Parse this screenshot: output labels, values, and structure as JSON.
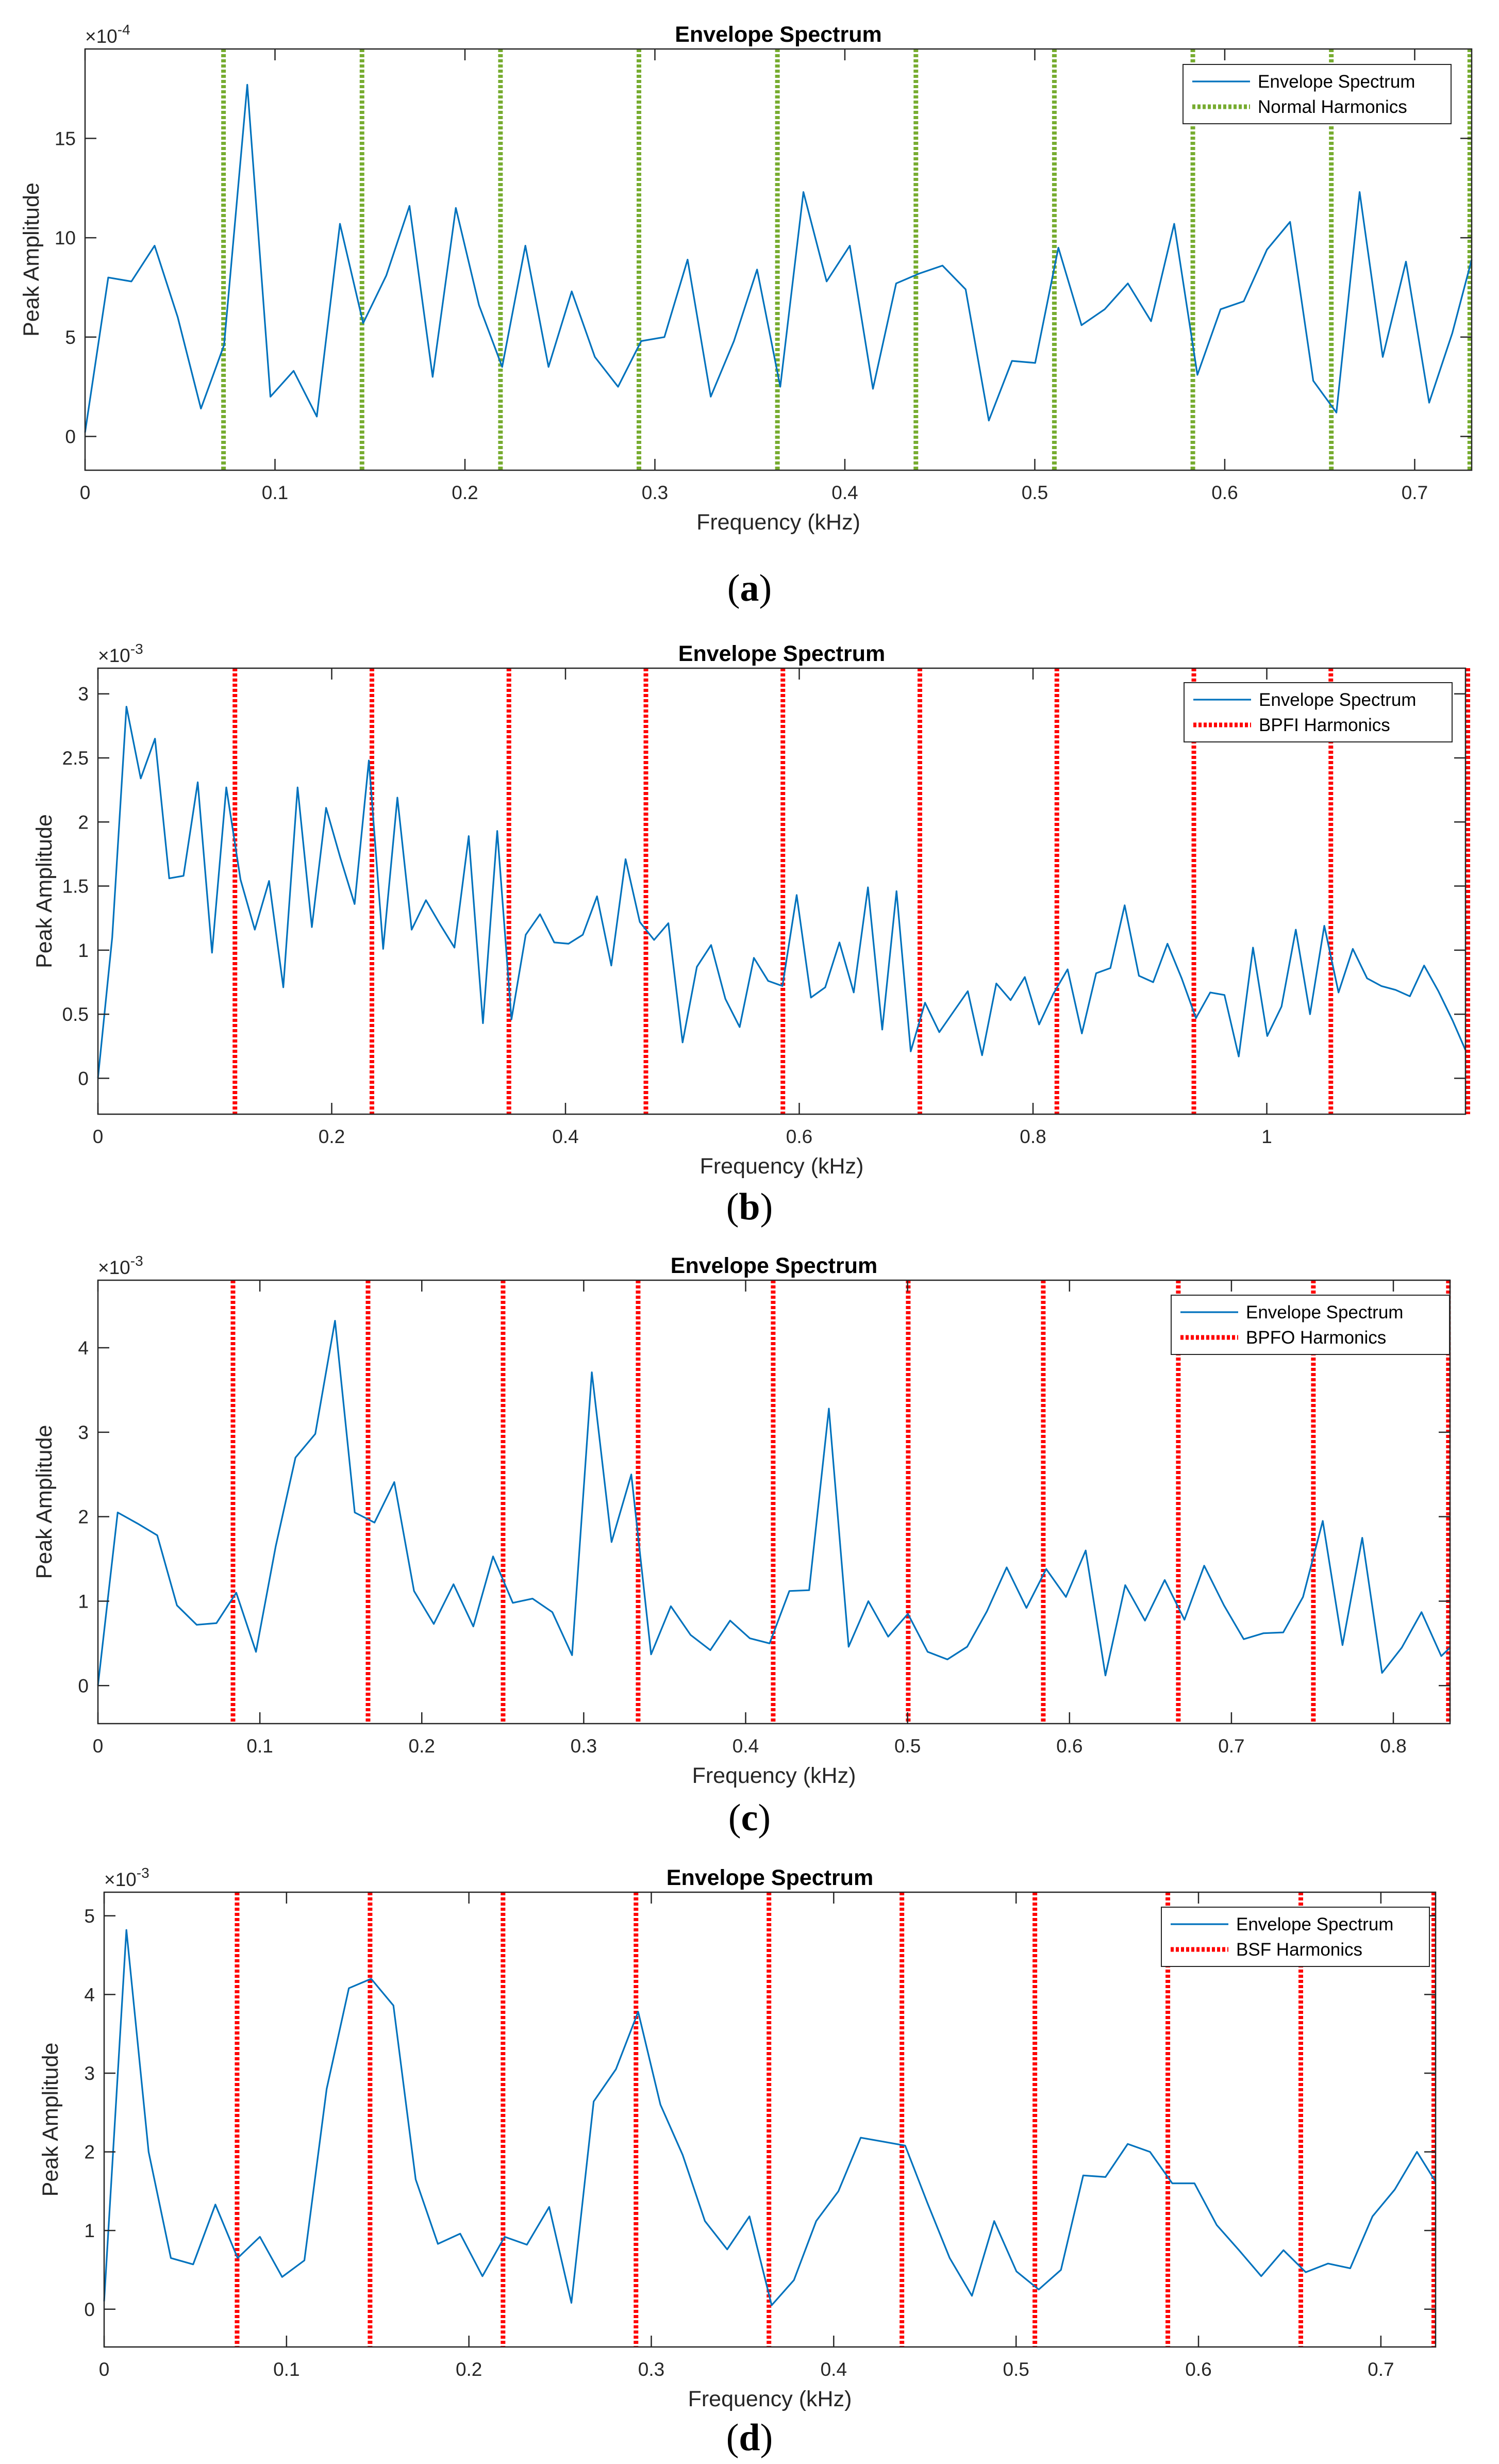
{
  "chart_data": [
    {
      "type": "line",
      "title": "Envelope Spectrum",
      "xlabel": "Frequency (kHz)",
      "ylabel": "Peak Amplitude",
      "exponent": "×10^-4",
      "exp_base": "×10",
      "exp_power": "-4",
      "xlim": [
        0,
        0.73
      ],
      "ylim": [
        -1.7,
        19.5
      ],
      "xticks": [
        0,
        0.1,
        0.2,
        0.3,
        0.4,
        0.5,
        0.6,
        0.7
      ],
      "xtick_labels": [
        "0",
        "0.1",
        "0.2",
        "0.3",
        "0.4",
        "0.5",
        "0.6",
        "0.7"
      ],
      "yticks": [
        0,
        5,
        10,
        15
      ],
      "ytick_labels": [
        "0",
        "5",
        "10",
        "15"
      ],
      "harmonics_color": "#77AC30",
      "harmonics": [
        0.0729,
        0.1458,
        0.2187,
        0.2916,
        0.3645,
        0.4374,
        0.5103,
        0.5832,
        0.6561,
        0.729
      ],
      "legend": [
        "Envelope Spectrum",
        "Normal Harmonics"
      ],
      "panel_label": "a",
      "series": [
        {
          "name": "Envelope Spectrum",
          "x": [
            0,
            0.0122,
            0.0244,
            0.0366,
            0.0488,
            0.061,
            0.0732,
            0.0854,
            0.0976,
            0.1098,
            0.122,
            0.1342,
            0.1464,
            0.1586,
            0.1708,
            0.183,
            0.1952,
            0.2074,
            0.2196,
            0.2318,
            0.244,
            0.2562,
            0.2684,
            0.2806,
            0.2928,
            0.305,
            0.3172,
            0.3294,
            0.3416,
            0.3538,
            0.366,
            0.3782,
            0.3904,
            0.4026,
            0.4148,
            0.427,
            0.4392,
            0.4514,
            0.4636,
            0.4758,
            0.488,
            0.5002,
            0.5124,
            0.5246,
            0.5368,
            0.549,
            0.5612,
            0.5734,
            0.5856,
            0.5978,
            0.61,
            0.6222,
            0.6344,
            0.6466,
            0.6588,
            0.671,
            0.6832,
            0.6954,
            0.7076,
            0.7198,
            0.73
          ],
          "values": [
            0.2,
            8.0,
            7.8,
            9.6,
            6.0,
            1.4,
            4.6,
            17.7,
            2.0,
            3.3,
            1.0,
            10.7,
            5.7,
            8.1,
            11.6,
            3.0,
            11.5,
            6.6,
            3.5,
            9.6,
            3.5,
            7.3,
            4.0,
            2.5,
            4.8,
            5.0,
            8.9,
            2.0,
            4.8,
            8.4,
            2.5,
            12.3,
            7.8,
            9.6,
            2.4,
            7.7,
            8.2,
            8.6,
            7.4,
            0.8,
            3.8,
            3.7,
            9.5,
            5.6,
            6.4,
            7.7,
            5.8,
            10.7,
            3.1,
            6.4,
            6.8,
            9.4,
            10.8,
            2.8,
            1.2,
            12.3,
            4.0,
            8.8,
            1.7,
            5.2,
            8.9
          ]
        }
      ]
    },
    {
      "type": "line",
      "title": "Envelope Spectrum",
      "xlabel": "Frequency (kHz)",
      "ylabel": "Peak Amplitude",
      "exponent": "×10^-3",
      "exp_base": "×10",
      "exp_power": "-3",
      "xlim": [
        0,
        1.17
      ],
      "ylim": [
        -0.28,
        3.2
      ],
      "xticks": [
        0,
        0.2,
        0.4,
        0.6,
        0.8,
        1.0
      ],
      "xtick_labels": [
        "0",
        "0.2",
        "0.4",
        "0.6",
        "0.8",
        "1"
      ],
      "yticks": [
        0,
        0.5,
        1,
        1.5,
        2,
        2.5,
        3
      ],
      "ytick_labels": [
        "0",
        "0.5",
        "1",
        "1.5",
        "2",
        "2.5",
        "3"
      ],
      "harmonics_color": "#FF0000",
      "harmonics": [
        0.1172,
        0.2344,
        0.3516,
        0.4688,
        0.586,
        0.7032,
        0.8204,
        0.9376,
        1.0548,
        1.172
      ],
      "legend": [
        "Envelope Spectrum",
        "BPFI Harmonics"
      ],
      "panel_label": "b",
      "series": [
        {
          "name": "Envelope Spectrum",
          "x": [
            0,
            0.0122,
            0.0244,
            0.0366,
            0.0488,
            0.061,
            0.0732,
            0.0854,
            0.0976,
            0.1098,
            0.122,
            0.1342,
            0.1464,
            0.1586,
            0.1708,
            0.183,
            0.1952,
            0.2074,
            0.2196,
            0.2318,
            0.244,
            0.2562,
            0.2684,
            0.2806,
            0.2928,
            0.305,
            0.3172,
            0.3294,
            0.3416,
            0.3538,
            0.366,
            0.3782,
            0.3904,
            0.4026,
            0.4148,
            0.427,
            0.4392,
            0.4514,
            0.4636,
            0.4758,
            0.488,
            0.5002,
            0.5124,
            0.5246,
            0.5368,
            0.549,
            0.5612,
            0.5734,
            0.5856,
            0.5978,
            0.61,
            0.6222,
            0.6344,
            0.6466,
            0.6588,
            0.671,
            0.6832,
            0.6954,
            0.7076,
            0.7198,
            0.732,
            0.7442,
            0.7564,
            0.7686,
            0.7808,
            0.793,
            0.8052,
            0.8174,
            0.8296,
            0.8418,
            0.854,
            0.8662,
            0.8784,
            0.8906,
            0.9028,
            0.915,
            0.9272,
            0.9394,
            0.9516,
            0.9638,
            0.976,
            0.9882,
            1.0004,
            1.0126,
            1.0248,
            1.037,
            1.0492,
            1.0614,
            1.0736,
            1.0858,
            1.098,
            1.1102,
            1.1224,
            1.1346,
            1.1468,
            1.159,
            1.17
          ],
          "values": [
            0,
            1.1,
            2.9,
            2.34,
            2.65,
            1.56,
            1.58,
            2.31,
            0.98,
            2.27,
            1.55,
            1.16,
            1.54,
            0.71,
            2.27,
            1.18,
            2.11,
            1.72,
            1.36,
            2.48,
            1.01,
            2.19,
            1.16,
            1.39,
            1.2,
            1.02,
            1.89,
            0.43,
            1.93,
            0.46,
            1.12,
            1.28,
            1.06,
            1.05,
            1.12,
            1.42,
            0.88,
            1.71,
            1.22,
            1.08,
            1.21,
            0.28,
            0.87,
            1.04,
            0.62,
            0.4,
            0.94,
            0.76,
            0.72,
            1.43,
            0.63,
            0.71,
            1.06,
            0.67,
            1.49,
            0.38,
            1.46,
            0.21,
            0.59,
            0.36,
            0.52,
            0.68,
            0.18,
            0.74,
            0.61,
            0.79,
            0.42,
            0.66,
            0.85,
            0.35,
            0.82,
            0.86,
            1.35,
            0.8,
            0.75,
            1.05,
            0.78,
            0.47,
            0.67,
            0.65,
            0.17,
            1.02,
            0.33,
            0.56,
            1.16,
            0.5,
            1.19,
            0.67,
            1.01,
            0.78,
            0.72,
            0.69,
            0.64,
            0.88,
            0.68,
            0.45,
            0.22
          ]
        }
      ]
    },
    {
      "type": "line",
      "title": "Envelope Spectrum",
      "xlabel": "Frequency (kHz)",
      "ylabel": "Peak Amplitude",
      "exponent": "×10^-3",
      "exp_base": "×10",
      "exp_power": "-3",
      "xlim": [
        0,
        0.835
      ],
      "ylim": [
        -0.45,
        4.8
      ],
      "xticks": [
        0,
        0.1,
        0.2,
        0.3,
        0.4,
        0.5,
        0.6,
        0.7,
        0.8
      ],
      "xtick_labels": [
        "0",
        "0.1",
        "0.2",
        "0.3",
        "0.4",
        "0.5",
        "0.6",
        "0.7",
        "0.8"
      ],
      "yticks": [
        0,
        1,
        2,
        3,
        4
      ],
      "ytick_labels": [
        "0",
        "1",
        "2",
        "3",
        "4"
      ],
      "harmonics_color": "#FF0000",
      "harmonics": [
        0.0834,
        0.1668,
        0.2502,
        0.3336,
        0.417,
        0.5004,
        0.5838,
        0.6672,
        0.7506,
        0.834
      ],
      "legend": [
        "Envelope Spectrum",
        "BPFO Harmonics"
      ],
      "panel_label": "c",
      "series": [
        {
          "name": "Envelope Spectrum",
          "x": [
            0,
            0.0122,
            0.0244,
            0.0366,
            0.0488,
            0.061,
            0.0732,
            0.0854,
            0.0976,
            0.1098,
            0.122,
            0.1342,
            0.1464,
            0.1586,
            0.1708,
            0.183,
            0.1952,
            0.2074,
            0.2196,
            0.2318,
            0.244,
            0.2562,
            0.2684,
            0.2806,
            0.2928,
            0.305,
            0.3172,
            0.3294,
            0.3416,
            0.3538,
            0.366,
            0.3782,
            0.3904,
            0.4026,
            0.4148,
            0.427,
            0.4392,
            0.4514,
            0.4636,
            0.4758,
            0.488,
            0.5002,
            0.5124,
            0.5246,
            0.5368,
            0.549,
            0.5612,
            0.5734,
            0.5856,
            0.5978,
            0.61,
            0.6222,
            0.6344,
            0.6466,
            0.6588,
            0.671,
            0.6832,
            0.6954,
            0.7076,
            0.7198,
            0.732,
            0.7442,
            0.7564,
            0.7686,
            0.7808,
            0.793,
            0.8052,
            0.8174,
            0.8296,
            0.835
          ],
          "values": [
            0,
            2.05,
            1.92,
            1.78,
            0.95,
            0.72,
            0.74,
            1.1,
            0.4,
            1.65,
            2.7,
            2.98,
            4.32,
            2.05,
            1.93,
            2.41,
            1.12,
            0.73,
            1.2,
            0.7,
            1.53,
            0.98,
            1.03,
            0.87,
            0.36,
            3.71,
            1.7,
            2.5,
            0.37,
            0.94,
            0.6,
            0.42,
            0.77,
            0.56,
            0.5,
            1.12,
            1.13,
            3.28,
            0.46,
            1.0,
            0.58,
            0.85,
            0.4,
            0.31,
            0.46,
            0.88,
            1.4,
            0.92,
            1.38,
            1.05,
            1.6,
            0.12,
            1.19,
            0.77,
            1.25,
            0.78,
            1.42,
            0.95,
            0.55,
            0.62,
            0.63,
            1.05,
            1.95,
            0.48,
            1.75,
            0.15,
            0.45,
            0.87,
            0.35,
            0.45
          ]
        }
      ]
    },
    {
      "type": "line",
      "title": "Envelope Spectrum",
      "xlabel": "Frequency (kHz)",
      "ylabel": "Peak Amplitude",
      "exponent": "×10^-3",
      "exp_base": "×10",
      "exp_power": "-3",
      "xlim": [
        0,
        0.73
      ],
      "ylim": [
        -0.48,
        5.3
      ],
      "xticks": [
        0,
        0.1,
        0.2,
        0.3,
        0.4,
        0.5,
        0.6,
        0.7
      ],
      "xtick_labels": [
        "0",
        "0.1",
        "0.2",
        "0.3",
        "0.4",
        "0.5",
        "0.6",
        "0.7"
      ],
      "yticks": [
        0,
        1,
        2,
        3,
        4,
        5
      ],
      "ytick_labels": [
        "0",
        "1",
        "2",
        "3",
        "4",
        "5"
      ],
      "harmonics_color": "#FF0000",
      "harmonics": [
        0.0729,
        0.1458,
        0.2187,
        0.2916,
        0.3645,
        0.4374,
        0.5103,
        0.5832,
        0.6561,
        0.729
      ],
      "legend": [
        "Envelope Spectrum",
        "BSF Harmonics"
      ],
      "panel_label": "d",
      "series": [
        {
          "name": "Envelope Spectrum",
          "x": [
            0,
            0.0122,
            0.0244,
            0.0366,
            0.0488,
            0.061,
            0.0732,
            0.0854,
            0.0976,
            0.1098,
            0.122,
            0.1342,
            0.1464,
            0.1586,
            0.1708,
            0.183,
            0.1952,
            0.2074,
            0.2196,
            0.2318,
            0.244,
            0.2562,
            0.2684,
            0.2806,
            0.2928,
            0.305,
            0.3172,
            0.3294,
            0.3416,
            0.3538,
            0.366,
            0.3782,
            0.3904,
            0.4026,
            0.4148,
            0.427,
            0.4392,
            0.4514,
            0.4636,
            0.4758,
            0.488,
            0.5002,
            0.5124,
            0.5246,
            0.5368,
            0.549,
            0.5612,
            0.5734,
            0.5856,
            0.5978,
            0.61,
            0.6222,
            0.6344,
            0.6466,
            0.6588,
            0.671,
            0.6832,
            0.6954,
            0.7076,
            0.7198,
            0.73
          ],
          "values": [
            0.1,
            4.82,
            2.0,
            0.65,
            0.57,
            1.33,
            0.65,
            0.92,
            0.41,
            0.62,
            2.8,
            4.08,
            4.2,
            3.86,
            1.65,
            0.83,
            0.96,
            0.42,
            0.92,
            0.82,
            1.3,
            0.08,
            2.64,
            3.05,
            3.78,
            2.6,
            1.96,
            1.12,
            0.76,
            1.18,
            0.05,
            0.37,
            1.12,
            1.5,
            2.18,
            2.13,
            2.08,
            1.35,
            0.65,
            0.17,
            1.12,
            0.48,
            0.25,
            0.5,
            1.7,
            1.68,
            2.1,
            2.0,
            1.6,
            1.6,
            1.07,
            0.75,
            0.42,
            0.75,
            0.47,
            0.58,
            0.52,
            1.18,
            1.52,
            2.0,
            1.62
          ]
        }
      ]
    }
  ]
}
